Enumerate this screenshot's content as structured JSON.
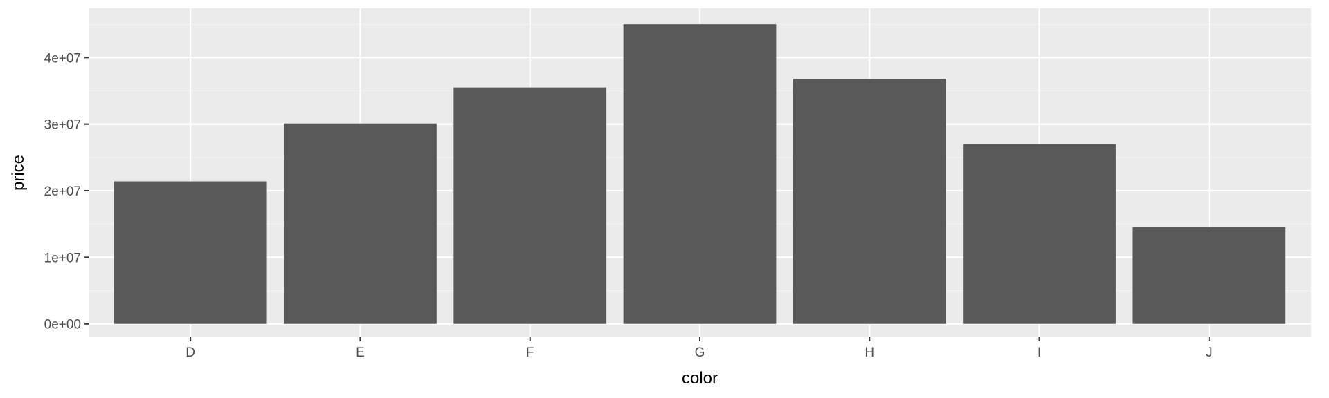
{
  "colors": {
    "panel_background": "#EBEBEB",
    "grid_major": "#FFFFFF",
    "grid_minor": "#F5F5F5",
    "bar_fill": "#595959",
    "tick_mark": "#333333",
    "tick_text": "#4D4D4D",
    "axis_title_text": "#000000"
  },
  "chart_data": {
    "type": "bar",
    "title": "",
    "xlabel": "color",
    "ylabel": "price",
    "categories": [
      "D",
      "E",
      "F",
      "G",
      "H",
      "I",
      "J"
    ],
    "values": [
      21400000,
      30100000,
      35500000,
      45000000,
      36800000,
      27000000,
      14500000
    ],
    "ylim": [
      -2000000,
      47400000
    ],
    "y_ticks": [
      0,
      10000000,
      20000000,
      30000000,
      40000000
    ],
    "y_tick_labels": [
      "0e+00",
      "1e+07",
      "2e+07",
      "3e+07",
      "4e+07"
    ],
    "grid": true,
    "legend": "none"
  }
}
